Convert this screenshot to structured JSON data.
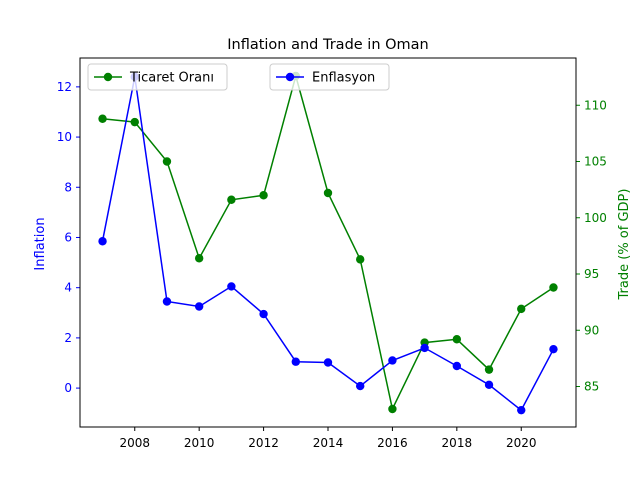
{
  "chart_data": {
    "type": "line",
    "title": "Inflation and Trade in Oman",
    "x": [
      2007,
      2008,
      2009,
      2010,
      2011,
      2012,
      2013,
      2014,
      2015,
      2016,
      2017,
      2018,
      2019,
      2020,
      2021
    ],
    "x_ticks": [
      2008,
      2010,
      2012,
      2014,
      2016,
      2018,
      2020
    ],
    "xlim": [
      2006.3,
      2021.7
    ],
    "left_axis": {
      "label": "Inflation",
      "color": "#0000ff",
      "ylim": [
        -1.55,
        13.15
      ],
      "ticks": [
        0,
        2,
        4,
        6,
        8,
        10,
        12
      ]
    },
    "right_axis": {
      "label": "Trade (% of GDP)",
      "color": "#008000",
      "ylim": [
        81.4,
        114.2
      ],
      "ticks": [
        85,
        90,
        95,
        100,
        105,
        110
      ]
    },
    "series": [
      {
        "name": "Enflasyon",
        "axis": "left",
        "color": "#0000ff",
        "values": [
          5.85,
          12.4,
          3.45,
          3.25,
          4.05,
          2.95,
          1.05,
          1.02,
          0.08,
          1.1,
          1.6,
          0.88,
          0.13,
          -0.88,
          1.55
        ]
      },
      {
        "name": "Ticaret Oranı",
        "axis": "right",
        "color": "#008000",
        "values": [
          108.8,
          108.5,
          105.0,
          96.4,
          101.6,
          102.0,
          112.6,
          102.2,
          96.3,
          83.0,
          88.9,
          89.2,
          86.5,
          91.9,
          93.8
        ]
      }
    ],
    "grid": false,
    "legend_placement": [
      "upper-left",
      "upper-center"
    ]
  }
}
